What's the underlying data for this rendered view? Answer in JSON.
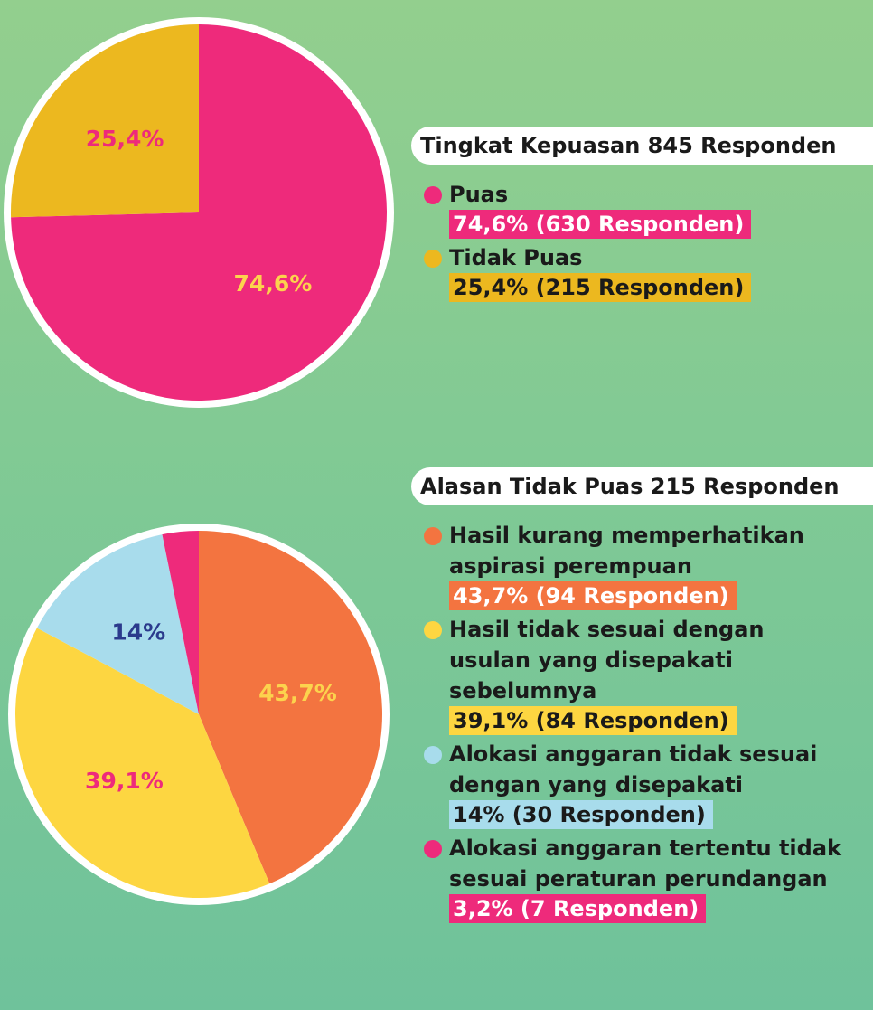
{
  "chart_data": [
    {
      "type": "pie",
      "title": "Tingkat Kepuasan 845 Responden",
      "categories": [
        "Puas",
        "Tidak Puas"
      ],
      "values": [
        74.6,
        25.4
      ],
      "value_labels": [
        "74,6%",
        "25,4%"
      ],
      "colors": [
        "#ee2a7b",
        "#ecb81f"
      ],
      "label_colors": [
        "#fcd34d",
        "#ee2a7b"
      ],
      "details": [
        "74,6% (630 Responden)",
        "25,4% (215 Responden)"
      ],
      "detail_colors": [
        "#ffffff",
        "#1a1a1a"
      ]
    },
    {
      "type": "pie",
      "title": "Alasan Tidak Puas 215 Responden",
      "categories": [
        "Hasil kurang memperhatikan aspirasi perempuan",
        "Hasil tidak sesuai dengan usulan yang disepakati sebelumnya",
        "Alokasi anggaran tidak sesuai dengan yang disepakati",
        "Alokasi anggaran tertentu tidak sesuai peraturan perundangan"
      ],
      "values": [
        43.7,
        39.1,
        14,
        3.2
      ],
      "value_labels": [
        "43,7%",
        "39,1%",
        "14%",
        null
      ],
      "colors": [
        "#f37440",
        "#fdd641",
        "#a8dcec",
        "#ee2a7b"
      ],
      "label_colors": [
        "#fcd34d",
        "#ee2a7b",
        "#2b3a8c",
        "#ffffff"
      ],
      "details": [
        "43,7% (94 Responden)",
        "39,1% (84 Responden)",
        "14% (30 Responden)",
        "3,2% (7 Responden)"
      ],
      "detail_colors": [
        "#ffffff",
        "#1a1a1a",
        "#1a1a1a",
        "#ffffff"
      ]
    }
  ]
}
